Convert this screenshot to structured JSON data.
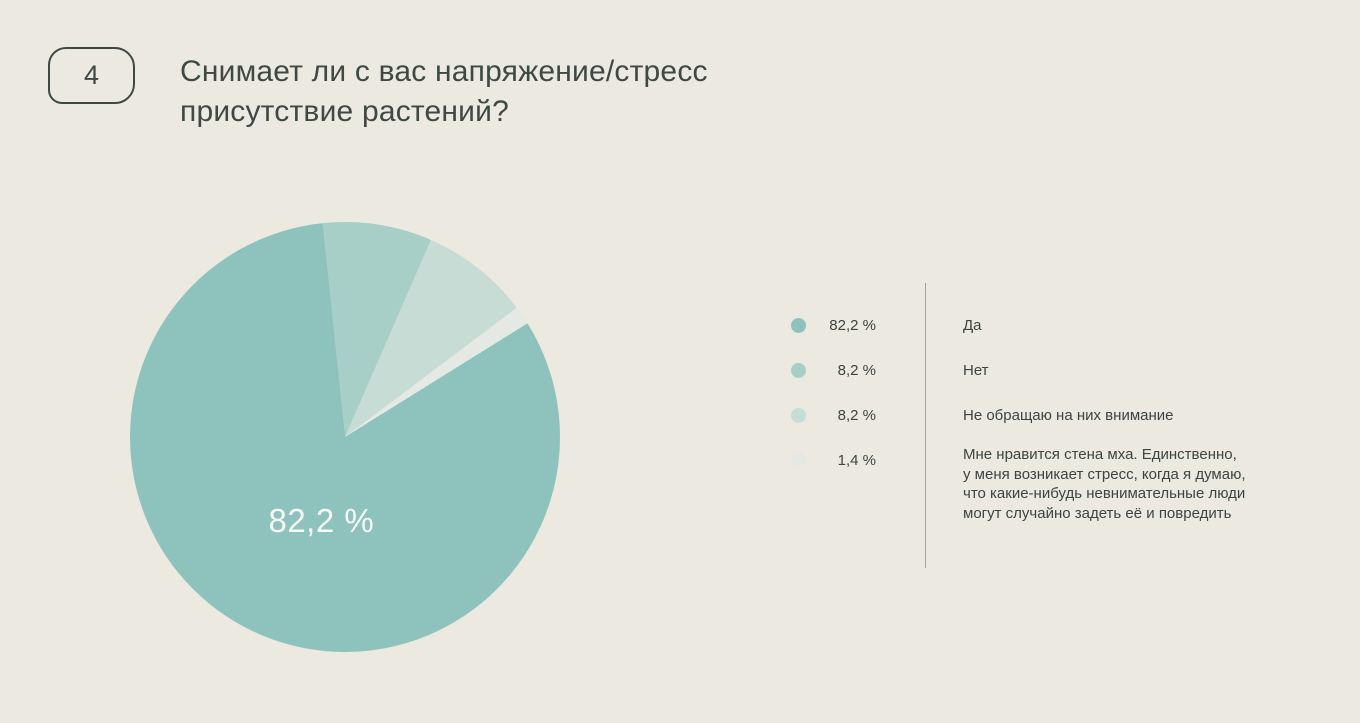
{
  "page": {
    "background": "#ece9e0"
  },
  "badge": {
    "number": "4"
  },
  "title": {
    "line1": "Снимает ли с вас напряжение/стресс",
    "line2": "присутствие растений?"
  },
  "chart_data": {
    "type": "pie",
    "title": "Снимает ли с вас напряжение/стресс присутствие растений?",
    "labels": [
      "Да",
      "Нет",
      "Не обращаю на них внимание",
      "Мне нравится стена мха. Единственно,\nу меня возникает стресс, когда я думаю,\nчто какие-нибудь невнимательные люди\nмогут случайно задеть её и повредить"
    ],
    "values": [
      82.2,
      8.2,
      8.2,
      1.4
    ],
    "value_labels": [
      "82,2 %",
      "8,2 %",
      "8,2 %",
      "1,4 %"
    ],
    "colors": [
      "#8ec3bd",
      "#a7cec7",
      "#c6dcd5",
      "#e4eae3"
    ],
    "pie_label": "82,2 %",
    "legend_position": "right",
    "start_angle_deg": -6,
    "clockwise_order_from_top": [
      1,
      2,
      3,
      0
    ]
  }
}
